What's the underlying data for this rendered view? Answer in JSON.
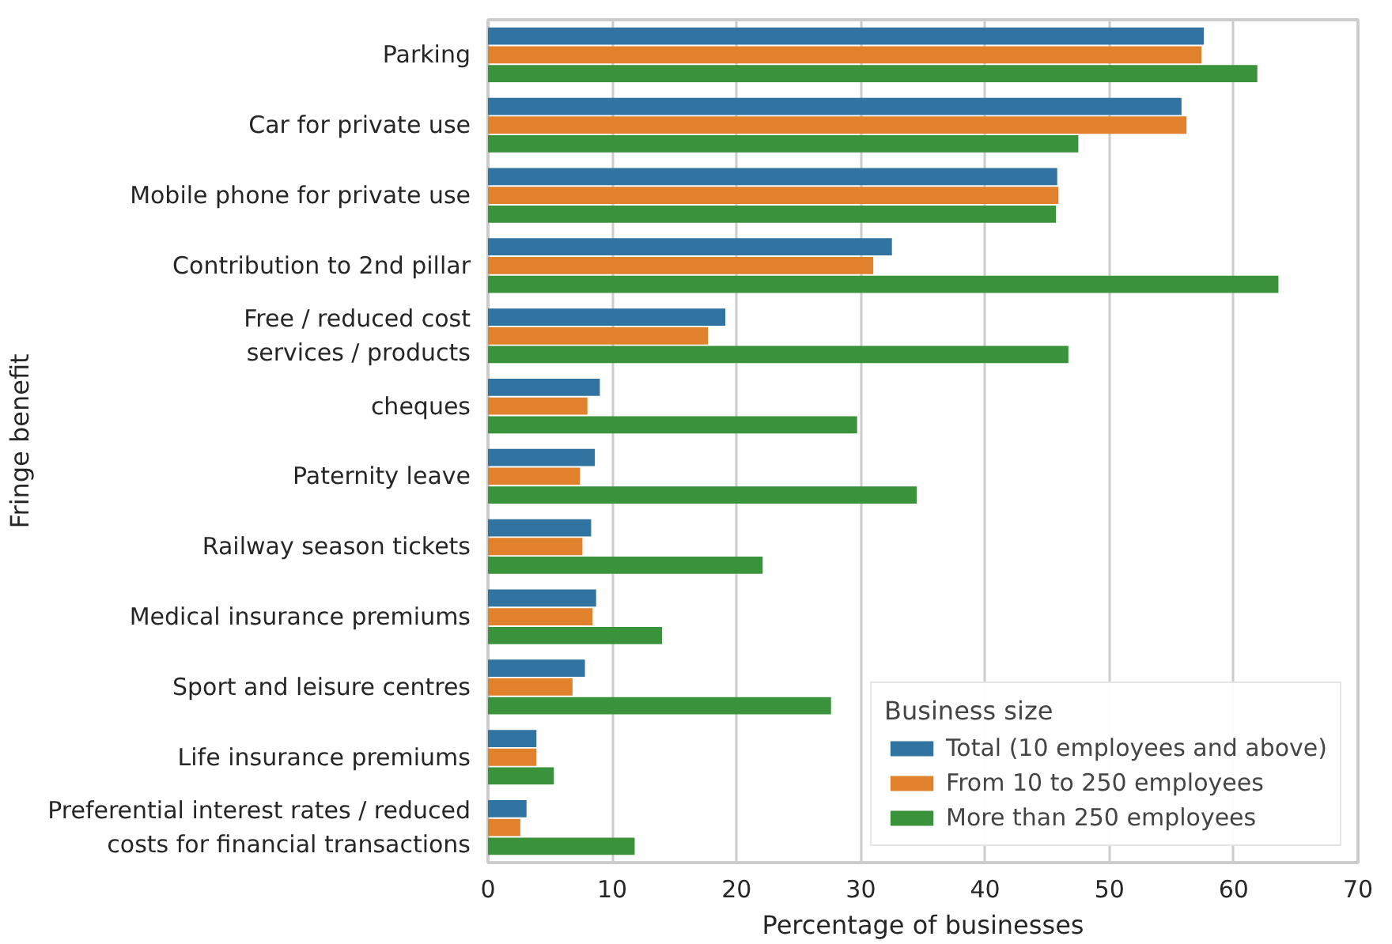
{
  "chart_data": {
    "type": "bar",
    "orientation": "horizontal",
    "xlabel": "Percentage of businesses",
    "ylabel": "Fringe benefit",
    "legend_title": "Business size",
    "categories": [
      "Parking",
      "Car for private use",
      "Mobile phone for private use",
      "Contribution to 2nd pillar",
      "Free / reduced cost\nservices / products",
      "cheques",
      "Paternity leave",
      "Railway season tickets",
      "Medical insurance premiums",
      "Sport and leisure centres",
      "Life insurance premiums",
      "Preferential interest rates / reduced\ncosts for financial transactions"
    ],
    "series": [
      {
        "name": "Total (10 employees and above)",
        "color": "#3274a1",
        "values": [
          57.6,
          55.8,
          45.8,
          32.5,
          19.1,
          9.0,
          8.6,
          8.3,
          8.7,
          7.8,
          3.9,
          3.1
        ]
      },
      {
        "name": "From 10 to 250 employees",
        "color": "#e1812c",
        "values": [
          57.4,
          56.2,
          45.9,
          31.0,
          17.7,
          8.0,
          7.4,
          7.6,
          8.4,
          6.8,
          3.9,
          2.6
        ]
      },
      {
        "name": "More than 250 employees",
        "color": "#3a923a",
        "values": [
          61.9,
          47.5,
          45.7,
          63.6,
          46.7,
          29.7,
          34.5,
          22.1,
          14.0,
          27.6,
          5.3,
          11.8
        ]
      }
    ],
    "xlim": [
      0,
      70
    ],
    "xticks": [
      0,
      10,
      20,
      30,
      40,
      50,
      60,
      70
    ],
    "grid": "x",
    "legend": "bottom right"
  }
}
